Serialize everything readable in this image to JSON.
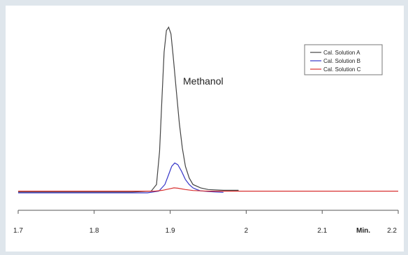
{
  "chart_data": {
    "type": "line",
    "title": "",
    "xlabel": "",
    "ylabel": "",
    "x_unit_label": "Min.",
    "xlim": [
      1.7,
      2.2
    ],
    "ylim": [
      0,
      1.0
    ],
    "x_ticks": [
      1.7,
      1.8,
      1.9,
      2.0,
      2.1,
      2.2
    ],
    "x_tick_labels": [
      "1.7",
      "1.8",
      "1.9",
      "2",
      "2.1",
      "2.2"
    ],
    "grid": false,
    "legend_position": "top-right",
    "annotations": [
      {
        "text": "Methanol",
        "x": 1.91,
        "y": 0.7
      }
    ],
    "series": [
      {
        "name": "Cal. Solution A",
        "color": "#444444",
        "x": [
          1.7,
          1.85,
          1.875,
          1.882,
          1.886,
          1.889,
          1.892,
          1.895,
          1.898,
          1.901,
          1.904,
          1.908,
          1.912,
          1.916,
          1.92,
          1.925,
          1.93,
          1.94,
          1.95,
          1.97,
          1.99
        ],
        "y": [
          0.005,
          0.005,
          0.01,
          0.05,
          0.25,
          0.55,
          0.85,
          0.98,
          1.0,
          0.96,
          0.82,
          0.62,
          0.42,
          0.27,
          0.16,
          0.09,
          0.05,
          0.03,
          0.02,
          0.015,
          0.015
        ]
      },
      {
        "name": "Cal. Solution B",
        "color": "#3535c8",
        "x": [
          1.7,
          1.87,
          1.885,
          1.893,
          1.898,
          1.902,
          1.906,
          1.91,
          1.915,
          1.92,
          1.925,
          1.93,
          1.935,
          1.94,
          1.95,
          1.96,
          1.97
        ],
        "y": [
          0.0,
          0.0,
          0.01,
          0.05,
          0.11,
          0.16,
          0.18,
          0.17,
          0.13,
          0.08,
          0.05,
          0.03,
          0.02,
          0.012,
          0.008,
          0.005,
          0.003
        ]
      },
      {
        "name": "Cal. Solution C",
        "color": "#d83030",
        "x": [
          1.7,
          1.88,
          1.89,
          1.9,
          1.905,
          1.91,
          1.92,
          1.93,
          1.94,
          1.95,
          2.0,
          2.05,
          2.1,
          2.15,
          2.2
        ],
        "y": [
          0.01,
          0.01,
          0.015,
          0.025,
          0.03,
          0.028,
          0.02,
          0.014,
          0.012,
          0.01,
          0.01,
          0.01,
          0.01,
          0.01,
          0.01
        ]
      }
    ]
  }
}
